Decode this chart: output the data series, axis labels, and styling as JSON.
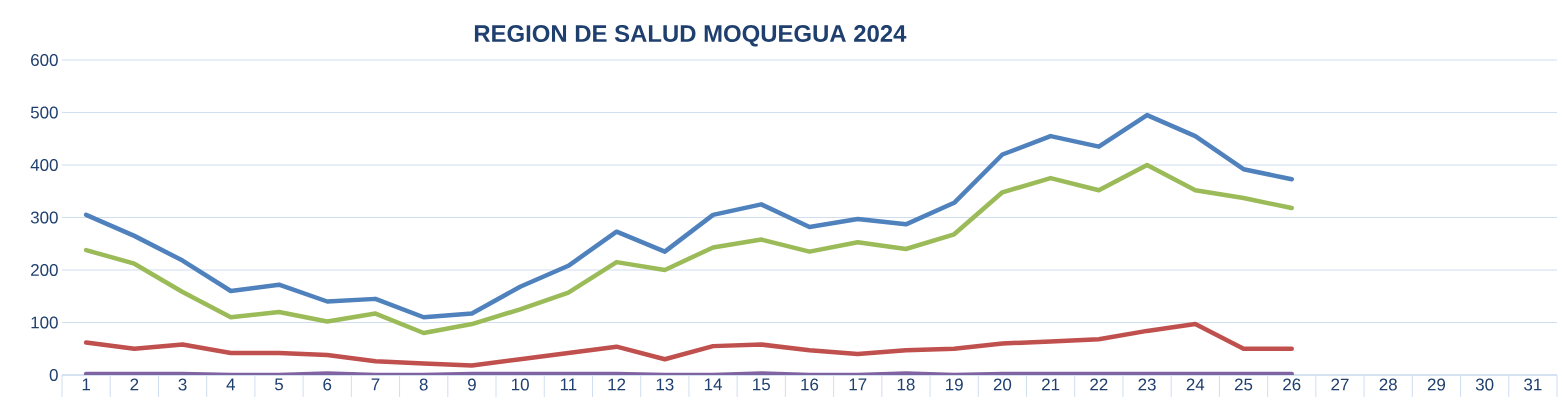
{
  "chart_data": {
    "type": "line",
    "title": "REGION DE SALUD MOQUEGUA 2024",
    "categories": [
      "1",
      "2",
      "3",
      "4",
      "5",
      "6",
      "7",
      "8",
      "9",
      "10",
      "11",
      "12",
      "13",
      "14",
      "15",
      "16",
      "17",
      "18",
      "19",
      "20",
      "21",
      "22",
      "23",
      "24",
      "25",
      "26",
      "27",
      "28",
      "29",
      "30",
      "31"
    ],
    "series": [
      {
        "color": "#4f81bd",
        "values": [
          305,
          265,
          218,
          160,
          172,
          140,
          145,
          110,
          117,
          168,
          208,
          273,
          235,
          305,
          325,
          282,
          297,
          287,
          328,
          420,
          455,
          435,
          495,
          455,
          392,
          373,
          null,
          null,
          null,
          null,
          null
        ]
      },
      {
        "color": "#c0504d",
        "values": [
          62,
          50,
          58,
          42,
          42,
          38,
          26,
          22,
          18,
          30,
          42,
          54,
          30,
          55,
          58,
          47,
          40,
          47,
          50,
          60,
          64,
          68,
          84,
          97,
          50,
          50,
          null,
          null,
          null,
          null,
          null
        ]
      },
      {
        "color": "#9bbb59",
        "values": [
          238,
          212,
          158,
          110,
          120,
          102,
          117,
          80,
          97,
          125,
          157,
          215,
          200,
          243,
          258,
          235,
          253,
          240,
          268,
          348,
          375,
          352,
          400,
          352,
          337,
          318,
          null,
          null,
          null,
          null,
          null
        ]
      },
      {
        "color": "#8064a2",
        "values": [
          2,
          2,
          2,
          0,
          0,
          3,
          0,
          0,
          2,
          2,
          2,
          2,
          0,
          0,
          3,
          0,
          0,
          3,
          0,
          2,
          2,
          2,
          2,
          2,
          2,
          2,
          null,
          null,
          null,
          null,
          null
        ]
      }
    ],
    "ylim": [
      0,
      600
    ],
    "yticks": [
      0,
      100,
      200,
      300,
      400,
      500,
      600
    ],
    "grid": "y",
    "legend": false
  }
}
